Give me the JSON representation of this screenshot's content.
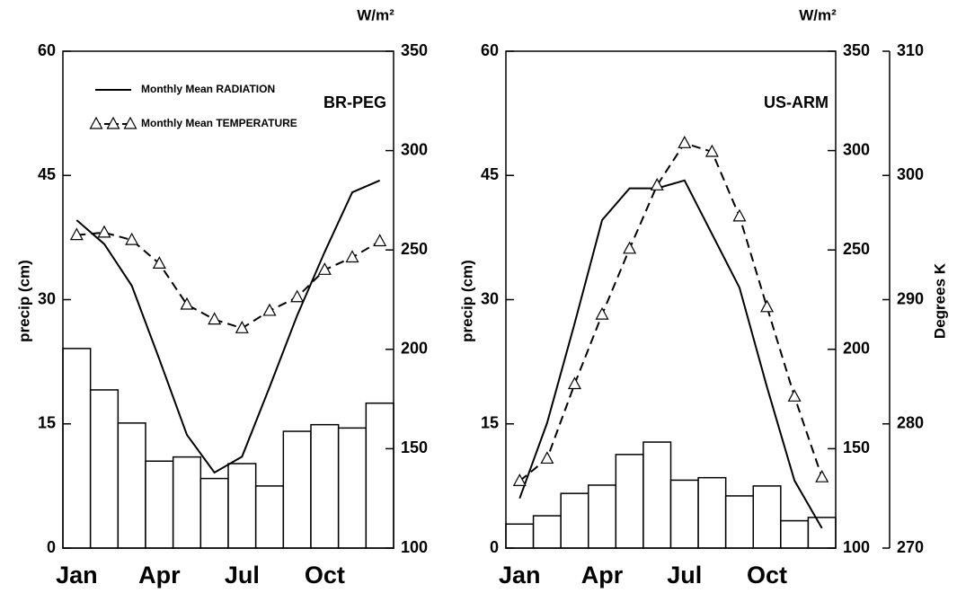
{
  "chart_data": [
    {
      "type": "combo",
      "title": "BR-PEG",
      "categories": [
        "Jan",
        null,
        null,
        "Apr",
        null,
        null,
        "Jul",
        null,
        null,
        "Oct",
        null,
        null
      ],
      "ylabel": "precip (cm)",
      "y2label": "W/m²",
      "ylim": [
        0,
        60
      ],
      "yticks": [
        0,
        15,
        30,
        45,
        60
      ],
      "y2lim": [
        100,
        350
      ],
      "y2ticks": [
        100,
        150,
        200,
        250,
        300,
        350
      ],
      "y3lim": [
        270,
        310
      ],
      "legend": "upper left",
      "series": [
        {
          "type": "bar",
          "color": "#000000",
          "values": [
            24.1,
            19.1,
            15.1,
            10.5,
            11.0,
            8.4,
            10.2,
            7.5,
            14.1,
            14.9,
            14.5,
            17.5
          ]
        },
        {
          "type": "line",
          "name": "Monthly Mean RADIATION",
          "axis": "y2",
          "color": "#000000",
          "linestyle": "solid",
          "values": [
            265,
            253,
            232,
            195,
            157,
            138,
            146,
            181,
            217,
            249,
            279,
            285
          ]
        },
        {
          "type": "line",
          "name": "Monthly Mean TEMPERATURE",
          "axis": "y3",
          "color": "#000000",
          "linestyle": "dashed",
          "marker": "triangle",
          "values": [
            295.2,
            295.4,
            294.8,
            292.9,
            289.6,
            288.4,
            287.7,
            289.1,
            290.2,
            292.4,
            293.4,
            294.7
          ]
        }
      ]
    },
    {
      "type": "combo",
      "title": "US-ARM",
      "categories": [
        "Jan",
        null,
        null,
        "Apr",
        null,
        null,
        "Jul",
        null,
        null,
        "Oct",
        null,
        null
      ],
      "ylabel": "precip (cm)",
      "y2label": "W/m²",
      "y3label": "Degrees K",
      "ylim": [
        0,
        60
      ],
      "yticks": [
        0,
        15,
        30,
        45,
        60
      ],
      "y2lim": [
        100,
        350
      ],
      "y2ticks": [
        100,
        150,
        200,
        250,
        300,
        350
      ],
      "y3lim": [
        270,
        310
      ],
      "y3ticks": [
        270,
        280,
        290,
        300,
        310
      ],
      "series": [
        {
          "type": "bar",
          "color": "#000000",
          "values": [
            2.9,
            3.9,
            6.6,
            7.6,
            11.3,
            12.8,
            8.2,
            8.5,
            6.3,
            7.5,
            3.3,
            3.7
          ]
        },
        {
          "type": "line",
          "axis": "y2",
          "color": "#000000",
          "linestyle": "solid",
          "values": [
            125,
            163,
            213,
            265,
            281,
            281,
            285,
            258,
            231,
            181,
            134,
            110
          ]
        },
        {
          "type": "line",
          "axis": "y3",
          "color": "#000000",
          "linestyle": "dashed",
          "marker": "triangle",
          "values": [
            275.4,
            277.2,
            283.2,
            288.8,
            294.1,
            299.2,
            302.6,
            301.9,
            296.7,
            289.4,
            282.2,
            275.7
          ]
        }
      ]
    }
  ]
}
